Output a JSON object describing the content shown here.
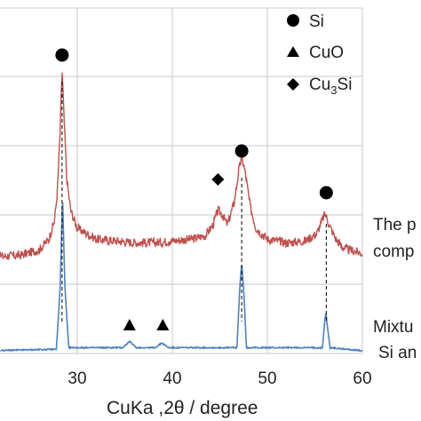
{
  "chart_data": {
    "type": "line",
    "xlabel": "CuKa ,2θ  / degree",
    "xlim": [
      20,
      60
    ],
    "xticks": [
      "30",
      "40",
      "50",
      "60"
    ],
    "grid": true,
    "legend_placement": "top-right",
    "legend": [
      {
        "marker": "circle",
        "label": "Si"
      },
      {
        "marker": "triangle",
        "label": "CuO"
      },
      {
        "marker": "diamond",
        "label_base": "Cu",
        "label_sub": "3",
        "label_tail": "Si"
      }
    ],
    "annotations": [
      {
        "line1": "The p",
        "line2": "comp"
      },
      {
        "line1": "Mixtu",
        "line2": "Si an"
      }
    ],
    "series": [
      {
        "color": "#c0504d",
        "baseline": 0.52,
        "points": [
          [
            20,
            0.52
          ],
          [
            24,
            0.53
          ],
          [
            26,
            0.56
          ],
          [
            27,
            0.62
          ],
          [
            27.6,
            0.72
          ],
          [
            27.9,
            0.88
          ],
          [
            28.2,
            1.22
          ],
          [
            28.4,
            1.56
          ],
          [
            28.6,
            1.3
          ],
          [
            28.9,
            0.95
          ],
          [
            29.3,
            0.78
          ],
          [
            30,
            0.68
          ],
          [
            32,
            0.62
          ],
          [
            34,
            0.61
          ],
          [
            36,
            0.6
          ],
          [
            38,
            0.6
          ],
          [
            40,
            0.61
          ],
          [
            42,
            0.62
          ],
          [
            43.5,
            0.64
          ],
          [
            44.3,
            0.7
          ],
          [
            44.8,
            0.78
          ],
          [
            45.2,
            0.76
          ],
          [
            45.8,
            0.7
          ],
          [
            46.5,
            0.82
          ],
          [
            47.0,
            1.0
          ],
          [
            47.3,
            1.08
          ],
          [
            47.7,
            0.98
          ],
          [
            48.2,
            0.8
          ],
          [
            48.8,
            0.68
          ],
          [
            50,
            0.62
          ],
          [
            52,
            0.6
          ],
          [
            54,
            0.61
          ],
          [
            55.2,
            0.65
          ],
          [
            55.8,
            0.73
          ],
          [
            56.1,
            0.76
          ],
          [
            56.5,
            0.7
          ],
          [
            57.2,
            0.62
          ],
          [
            58,
            0.57
          ],
          [
            60,
            0.54
          ]
        ]
      },
      {
        "color": "#4f81bd",
        "baseline": 0.0,
        "points": [
          [
            20,
            0.0
          ],
          [
            27.8,
            0.01
          ],
          [
            28.2,
            0.4
          ],
          [
            28.45,
            0.98
          ],
          [
            28.7,
            0.4
          ],
          [
            29.1,
            0.02
          ],
          [
            34.8,
            0.02
          ],
          [
            35.5,
            0.06
          ],
          [
            36.2,
            0.02
          ],
          [
            38.2,
            0.02
          ],
          [
            38.9,
            0.05
          ],
          [
            39.6,
            0.02
          ],
          [
            46.8,
            0.02
          ],
          [
            47.1,
            0.4
          ],
          [
            47.3,
            0.55
          ],
          [
            47.5,
            0.4
          ],
          [
            47.8,
            0.02
          ],
          [
            55.8,
            0.02
          ],
          [
            56.0,
            0.16
          ],
          [
            56.15,
            0.25
          ],
          [
            56.3,
            0.16
          ],
          [
            56.6,
            0.02
          ],
          [
            60,
            0.0
          ]
        ]
      }
    ],
    "peak_markers": [
      {
        "marker": "circle",
        "x": 28.4
      },
      {
        "marker": "circle",
        "x": 47.3
      },
      {
        "marker": "circle",
        "x": 56.2
      },
      {
        "marker": "diamond",
        "x": 44.8
      },
      {
        "marker": "triangle",
        "x": 35.5
      },
      {
        "marker": "triangle",
        "x": 39.0
      }
    ],
    "dashed_lines": [
      28.4,
      47.3,
      56.2
    ]
  }
}
